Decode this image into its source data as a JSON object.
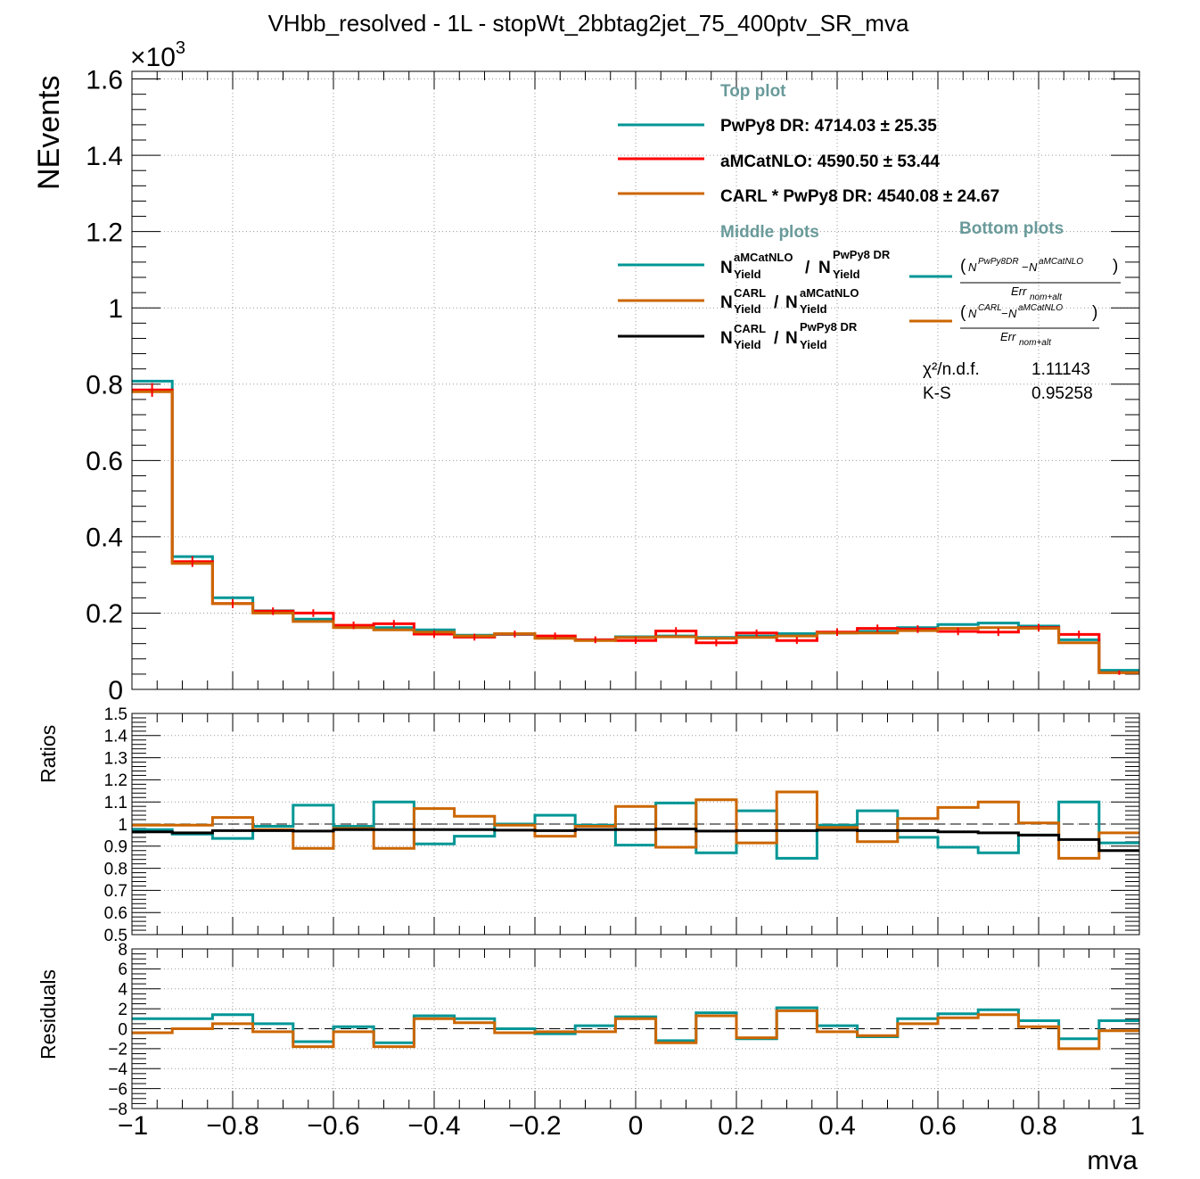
{
  "chart_data": {
    "type": "line",
    "title": "VHbb_resolved - 1L - stopWt_2bbtag2jet_75_400ptv_SR_mva",
    "xlabel": "mva",
    "bin_edges": [
      -1.0,
      -0.92,
      -0.84,
      -0.76,
      -0.68,
      -0.6,
      -0.52,
      -0.44,
      -0.36,
      -0.28,
      -0.2,
      -0.12,
      -0.04,
      0.04,
      0.12,
      0.2,
      0.28,
      0.36,
      0.44,
      0.52,
      0.6,
      0.68,
      0.76,
      0.84,
      0.92,
      1.0
    ],
    "x_ticks": [
      "−1",
      "−0.8",
      "−0.6",
      "−0.4",
      "−0.2",
      "0",
      "0.2",
      "0.4",
      "0.6",
      "0.8",
      "1"
    ],
    "colors": {
      "pwpy8": "#009696",
      "amcatnlo": "#ff0000",
      "carl": "#cc6600",
      "ratio_carl_pwpy8": "#000000"
    },
    "top": {
      "ylabel": "NEvents",
      "multiplier": "×10",
      "multiplier_exp": "3",
      "ylim": [
        0,
        1.62
      ],
      "y_ticks": [
        "0",
        "0.2",
        "0.4",
        "0.6",
        "0.8",
        "1",
        "1.2",
        "1.4",
        "1.6"
      ],
      "series": [
        {
          "name": "PwPy8 DR",
          "key": "pwpy8",
          "values": [
            0.808,
            0.348,
            0.24,
            0.206,
            0.184,
            0.166,
            0.162,
            0.156,
            0.142,
            0.144,
            0.138,
            0.13,
            0.138,
            0.14,
            0.136,
            0.14,
            0.146,
            0.148,
            0.152,
            0.162,
            0.17,
            0.174,
            0.166,
            0.13,
            0.05
          ]
        },
        {
          "name": "aMCatNLO",
          "key": "amcatnlo",
          "values": [
            0.785,
            0.335,
            0.225,
            0.205,
            0.2,
            0.168,
            0.172,
            0.145,
            0.137,
            0.145,
            0.14,
            0.13,
            0.128,
            0.153,
            0.122,
            0.148,
            0.128,
            0.15,
            0.16,
            0.158,
            0.152,
            0.15,
            0.162,
            0.144,
            0.044
          ]
        },
        {
          "name": "CARL * PwPy8 DR",
          "key": "carl",
          "values": [
            0.78,
            0.33,
            0.225,
            0.2,
            0.178,
            0.162,
            0.156,
            0.15,
            0.14,
            0.146,
            0.134,
            0.128,
            0.136,
            0.138,
            0.134,
            0.136,
            0.14,
            0.148,
            0.148,
            0.154,
            0.16,
            0.162,
            0.16,
            0.122,
            0.044
          ]
        }
      ],
      "errors_amcatnlo": [
        0.018,
        0.014,
        0.012,
        0.01,
        0.01,
        0.01,
        0.01,
        0.01,
        0.009,
        0.009,
        0.009,
        0.009,
        0.009,
        0.01,
        0.009,
        0.009,
        0.009,
        0.01,
        0.01,
        0.01,
        0.01,
        0.01,
        0.01,
        0.01,
        0.006
      ]
    },
    "middle": {
      "ylabel": "Ratios",
      "ylim": [
        0.5,
        1.5
      ],
      "y_ticks": [
        "0.5",
        "0.6",
        "0.7",
        "0.8",
        "0.9",
        "1",
        "1.1",
        "1.2",
        "1.3",
        "1.4",
        "1.5"
      ],
      "series": [
        {
          "key": "pwpy8",
          "values": [
            0.975,
            0.955,
            0.935,
            0.99,
            1.085,
            0.99,
            1.1,
            0.91,
            0.945,
            1.0,
            1.04,
            0.995,
            0.905,
            1.095,
            0.87,
            1.06,
            0.845,
            0.995,
            1.06,
            0.94,
            0.895,
            0.87,
            0.95,
            1.1,
            0.915
          ]
        },
        {
          "key": "carl",
          "values": [
            0.995,
            0.995,
            1.03,
            0.975,
            0.89,
            0.98,
            0.89,
            1.07,
            1.035,
            0.995,
            0.945,
            0.99,
            1.08,
            0.895,
            1.11,
            0.915,
            1.145,
            0.985,
            0.92,
            1.025,
            1.075,
            1.1,
            1.005,
            0.845,
            0.96
          ]
        },
        {
          "key": "ratio_carl_pwpy8",
          "values": [
            0.965,
            0.96,
            0.97,
            0.97,
            0.968,
            0.975,
            0.975,
            0.975,
            0.975,
            0.972,
            0.97,
            0.975,
            0.975,
            0.978,
            0.968,
            0.97,
            0.97,
            0.972,
            0.97,
            0.97,
            0.965,
            0.96,
            0.95,
            0.93,
            0.88
          ]
        }
      ]
    },
    "bottom": {
      "ylabel": "Residuals",
      "ylim": [
        -8,
        8
      ],
      "y_ticks": [
        "−8",
        "−6",
        "−4",
        "−2",
        "0",
        "2",
        "4",
        "6",
        "8"
      ],
      "series": [
        {
          "key": "pwpy8",
          "values": [
            1.0,
            1.0,
            1.4,
            0.5,
            -1.3,
            0.2,
            -1.4,
            1.3,
            1.0,
            0.0,
            -0.5,
            0.3,
            1.2,
            -1.2,
            1.6,
            -1.0,
            2.1,
            0.3,
            -0.8,
            1.0,
            1.5,
            1.9,
            0.8,
            -1.0,
            0.8
          ]
        },
        {
          "key": "carl",
          "values": [
            -0.4,
            0.0,
            0.5,
            -0.3,
            -1.8,
            -0.3,
            -1.8,
            1.0,
            0.6,
            -0.4,
            -0.3,
            -0.3,
            1.0,
            -1.4,
            1.3,
            -0.9,
            1.8,
            -0.3,
            -0.7,
            0.5,
            1.1,
            1.4,
            0.2,
            -2.0,
            -0.2
          ]
        }
      ]
    },
    "legend": {
      "top_header": "Top plot",
      "middle_header": "Middle plots",
      "bottom_header": "Bottom plots",
      "top_entries": [
        {
          "key": "pwpy8",
          "label": "PwPy8 DR: 4714.03 ± 25.35"
        },
        {
          "key": "amcatnlo",
          "label": "aMCatNLO: 4590.50 ± 53.44"
        },
        {
          "key": "carl",
          "label": "CARL * PwPy8 DR: 4540.08 ± 24.67"
        }
      ],
      "middle_entries": [
        {
          "key": "pwpy8",
          "num_sup": "aMCatNLO",
          "den_sup": "PwPy8 DR"
        },
        {
          "key": "carl",
          "num_sup": "CARL",
          "den_sup": "aMCatNLO"
        },
        {
          "key": "ratio_carl_pwpy8",
          "num_sup": "CARL",
          "den_sup": "PwPy8 DR"
        }
      ],
      "ratio_base": "N",
      "ratio_sub": "Yield",
      "bottom_entries": [
        {
          "key": "pwpy8",
          "num_a": "PwPy8DR",
          "num_b": "aMCatNLO",
          "den": "Err",
          "den_sub": "nom+alt"
        },
        {
          "key": "carl",
          "num_a": "CARL",
          "num_b": "aMCatNLO",
          "den": "Err",
          "den_sub": "nom+alt"
        }
      ],
      "stats": [
        {
          "label": "χ²/n.d.f.",
          "value": "1.11143"
        },
        {
          "label": "K-S",
          "value": "0.95258"
        }
      ]
    }
  }
}
